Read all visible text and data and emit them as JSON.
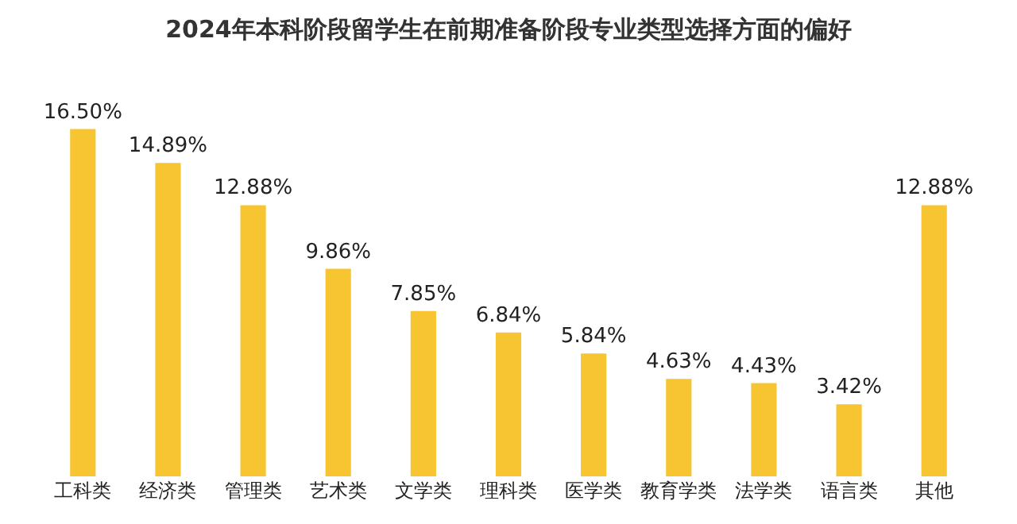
{
  "chart_data": {
    "type": "bar",
    "title": "2024年本科阶段留学生在前期准备阶段专业类型选择方面的偏好",
    "categories": [
      "工科类",
      "经济类",
      "管理类",
      "艺术类",
      "文学类",
      "理科类",
      "医学类",
      "教育学类",
      "法学类",
      "语言类",
      "其他"
    ],
    "values": [
      16.5,
      14.89,
      12.88,
      9.86,
      7.85,
      6.84,
      5.84,
      4.63,
      4.43,
      3.42,
      12.88
    ],
    "value_labels": [
      "16.50%",
      "14.89%",
      "12.88%",
      "9.86%",
      "7.85%",
      "6.84%",
      "5.84%",
      "4.63%",
      "4.43%",
      "3.42%",
      "12.88%"
    ],
    "color": "#f7c531",
    "grid": false,
    "legend": false
  }
}
